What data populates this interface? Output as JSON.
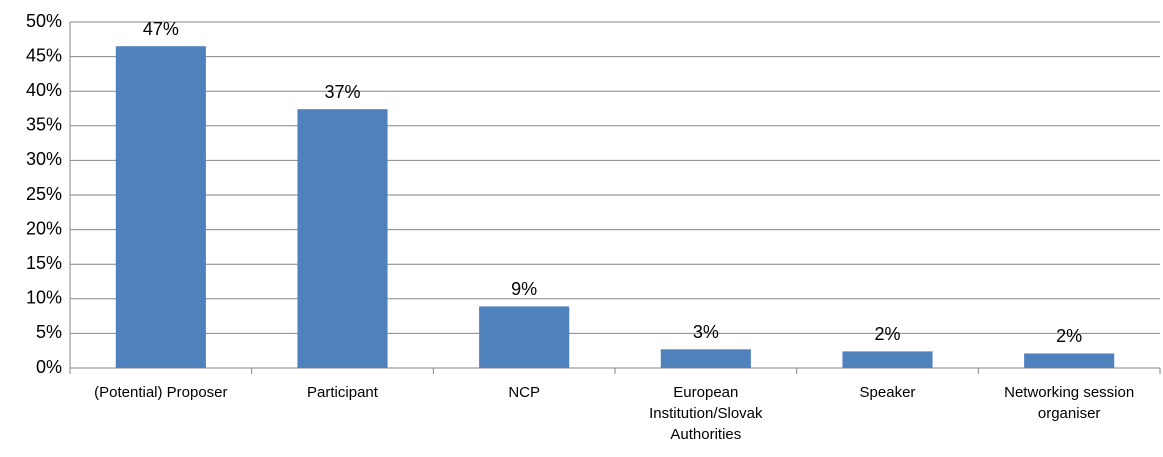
{
  "chart_data": {
    "type": "bar",
    "categories": [
      "(Potential) Proposer",
      "Participant",
      "NCP",
      "European Institution/Slovak Authorities",
      "Speaker",
      "Networking session organiser"
    ],
    "values": [
      46.5,
      37.4,
      8.9,
      2.7,
      2.4,
      2.1
    ],
    "value_labels": [
      "47%",
      "37%",
      "9%",
      "3%",
      "2%",
      "2%"
    ],
    "color": "#4f81bd",
    "ylim": [
      0,
      50
    ],
    "yticks": [
      {
        "value": 0,
        "label": "0%"
      },
      {
        "value": 5,
        "label": "5%"
      },
      {
        "value": 10,
        "label": "10%"
      },
      {
        "value": 15,
        "label": "15%"
      },
      {
        "value": 20,
        "label": "20%"
      },
      {
        "value": 25,
        "label": "25%"
      },
      {
        "value": 30,
        "label": "30%"
      },
      {
        "value": 35,
        "label": "35%"
      },
      {
        "value": 40,
        "label": "40%"
      },
      {
        "value": 45,
        "label": "45%"
      },
      {
        "value": 50,
        "label": "50%"
      }
    ],
    "grid": true
  }
}
